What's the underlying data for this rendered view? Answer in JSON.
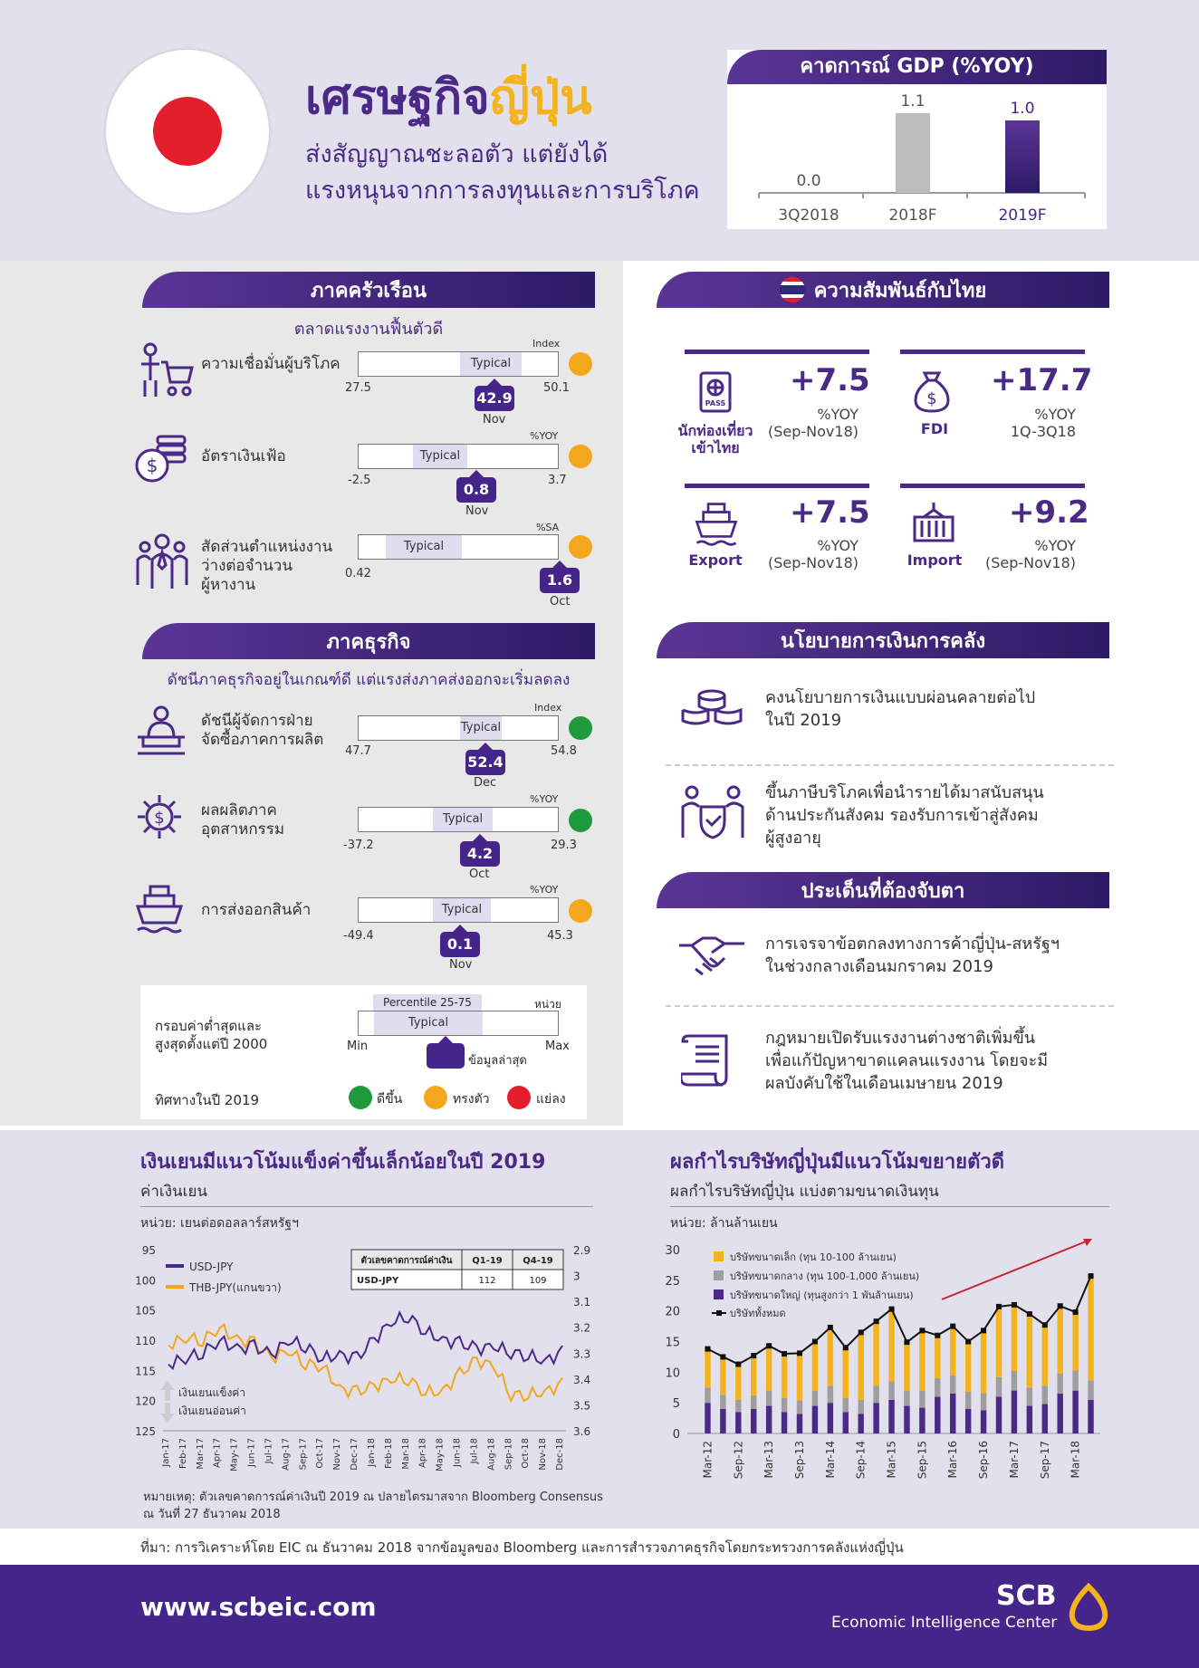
{
  "header": {
    "title_a": "เศรษฐกิจ",
    "title_b": "ญี่ปุ่น",
    "subtitle_1": "ส่งสัญญาณชะลอตัว แต่ยังได้",
    "subtitle_2": "แรงหนุนจากการลงทุนและการบริโภค"
  },
  "gdp": {
    "title": "คาดการณ์ GDP (%YOY)",
    "periods": [
      "3Q2018",
      "2018F",
      "2019F"
    ],
    "values": [
      "0.0",
      "1.1",
      "1.0"
    ]
  },
  "household": {
    "title": "ภาคครัวเรือน",
    "subtitle": "ตลาดแรงงานฟื้นตัวดี",
    "items": [
      {
        "label": "ความเชื่อมั่นผู้บริโภค",
        "unit": "Index",
        "min": "27.5",
        "max": "50.1",
        "typical": "Typical",
        "value": "42.9",
        "period": "Nov",
        "dot": "#f4a71c"
      },
      {
        "label": "อัตราเงินเฟ้อ",
        "unit": "%YOY",
        "min": "-2.5",
        "max": "3.7",
        "typical": "Typical",
        "value": "0.8",
        "period": "Nov",
        "dot": "#f4a71c"
      },
      {
        "label_1": "สัดส่วนตำแหน่งงาน",
        "label_2": "ว่างต่อจำนวน",
        "label_3": "ผู้หางาน",
        "unit": "%SA",
        "min": "0.42",
        "max": "",
        "typical": "Typical",
        "value": "1.6",
        "period": "Oct",
        "dot": "#f4a71c"
      }
    ]
  },
  "business": {
    "title": "ภาคธุรกิจ",
    "subtitle": "ดัชนีภาคธุรกิจอยู่ในเกณฑ์ดี แต่แรงส่งภาคส่งออกจะเริ่มลดลง",
    "items": [
      {
        "label_1": "ดัชนีผู้จัดการฝ่าย",
        "label_2": "จัดซื้อภาคการผลิต",
        "unit": "Index",
        "min": "47.7",
        "max": "54.8",
        "typical": "Typical",
        "value": "52.4",
        "period": "Dec",
        "dot": "#1e9a3c"
      },
      {
        "label_1": "ผลผลิตภาค",
        "label_2": "อุตสาหกรรม",
        "unit": "%YOY",
        "min": "-37.2",
        "max": "29.3",
        "typical": "Typical",
        "value": "4.2",
        "period": "Oct",
        "dot": "#1e9a3c"
      },
      {
        "label_1": "การส่งออกสินค้า",
        "unit": "%YOY",
        "min": "-49.4",
        "max": "45.3",
        "typical": "Typical",
        "value": "0.1",
        "period": "Nov",
        "dot": "#f4a71c"
      }
    ]
  },
  "legend": {
    "range_1": "กรอบค่าต่ำสุดและ",
    "range_2": "สูงสุดตั้งแต่ปี 2000",
    "percentile": "Percentile 25-75",
    "unit": "หน่วย",
    "typical": "Typical",
    "min": "Min",
    "max": "Max",
    "latest": "ข้อมูลล่าสุด",
    "direction": "ทิศทางในปี 2019",
    "up": "ดีขึ้น",
    "flat": "ทรงตัว",
    "down": "แย่ลง"
  },
  "thai": {
    "title": "ความสัมพันธ์กับไทย",
    "items": [
      {
        "value": "+7.5",
        "unit": "%YOY",
        "period": "(Sep-Nov18)",
        "name_1": "นักท่องเที่ยว",
        "name_2": "เข้าไทย",
        "icon": "passport-icon"
      },
      {
        "value": "+17.7",
        "unit": "%YOY",
        "period": "1Q-3Q18",
        "name_1": "FDI",
        "name_2": "",
        "icon": "money-bag-icon"
      },
      {
        "value": "+7.5",
        "unit": "%YOY",
        "period": "(Sep-Nov18)",
        "name_1": "Export",
        "name_2": "",
        "icon": "ship-icon"
      },
      {
        "value": "+9.2",
        "unit": "%YOY",
        "period": "(Sep-Nov18)",
        "name_1": "Import",
        "name_2": "",
        "icon": "container-icon"
      }
    ]
  },
  "fiscal": {
    "title": "นโยบายการเงินการคลัง",
    "items": [
      {
        "l1": "คงนโยบายการเงินแบบผ่อนคลายต่อไป",
        "l2": "ในปี 2019",
        "l3": ""
      },
      {
        "l1": "ขึ้นภาษีบริโภคเพื่อนำรายได้มาสนับสนุน",
        "l2": "ด้านประกันสังคม รองรับการเข้าสู่สังคม",
        "l3": "ผู้สูงอายุ"
      }
    ]
  },
  "watch": {
    "title": "ประเด็นที่ต้องจับตา",
    "items": [
      {
        "l1": "การเจรจาข้อตกลงทางการค้าญี่ปุ่น-สหรัฐฯ",
        "l2": "ในช่วงกลางเดือนมกราคม 2019",
        "l3": ""
      },
      {
        "l1": "กฎหมายเปิดรับแรงงานต่างชาติเพิ่มขึ้น",
        "l2": "เพื่อแก้ปัญหาขาดแคลนแรงงาน โดยจะมี",
        "l3": "ผลบังคับใช้ในเดือนเมษายน 2019"
      }
    ]
  },
  "yen": {
    "title": "เงินเยนมีแนวโน้มแข็งค่าขึ้นเล็กน้อยในปี 2019",
    "subtitle": "ค่าเงินเยน",
    "unit": "หน่วย: เยนต่อดอลลาร์สหรัฐฯ",
    "legend_usd": "USD-JPY",
    "legend_thb": "THB-JPY(แกนขวา)",
    "strong": "เงินเยนแข็งค่า",
    "weak": "เงินเยนอ่อนค่า",
    "forecast_header": [
      "ตัวเลขคาดการณ์ค่าเงิน",
      "Q1-19",
      "Q4-19"
    ],
    "forecast_row": [
      "USD-JPY",
      "112",
      "109"
    ],
    "note_1": "หมายเหตุ: ตัวเลขคาดการณ์ค่าเงินปี 2019 ณ ปลายไตรมาสจาก Bloomberg Consensus",
    "note_2": "ณ วันที่ 27 ธันวาคม 2018"
  },
  "profit": {
    "title": "ผลกำไรบริษัทญี่ปุ่นมีแนวโน้มขยายตัวดี",
    "subtitle": "ผลกำไรบริษัทญี่ปุ่น แบ่งตามขนาดเงินทุน",
    "unit": "หน่วย: ล้านล้านเยน",
    "legend": [
      "บริษัทขนาดเล็ก (ทุน 10-100 ล้านเยน)",
      "บริษัทขนาดกลาง (ทุน 100-1,000 ล้านเยน)",
      "บริษัทขนาดใหญ่ (ทุนสูงกว่า 1 พันล้านเยน)",
      "บริษัททั้งหมด"
    ]
  },
  "source": "ที่มา: การวิเคราะห์โดย EIC ณ ธันวาคม 2018 จากข้อมูลของ Bloomberg และการสำรวจภาคธุรกิจโดยกระทรวงการคลังแห่งญี่ปุ่น",
  "footer": {
    "url": "www.scbeic.com",
    "brand": "SCB",
    "brand_sub": "Economic Intelligence Center"
  },
  "chart_data": [
    {
      "type": "bar",
      "title": "คาดการณ์ GDP (%YOY)",
      "categories": [
        "3Q2018",
        "2018F",
        "2019F"
      ],
      "values": [
        0.0,
        1.1,
        1.0
      ]
    },
    {
      "type": "line",
      "title": "เงินเยนมีแนวโน้มแข็งค่าขึ้นเล็กน้อยในปี 2019",
      "ylabel": "หน่วย: เยนต่อดอลลาร์สหรัฐฯ",
      "x": [
        "Jan-17",
        "Feb-17",
        "Mar-17",
        "Apr-17",
        "May-17",
        "Jun-17",
        "Jul-17",
        "Aug-17",
        "Sep-17",
        "Oct-17",
        "Nov-17",
        "Dec-17",
        "Jan-18",
        "Feb-18",
        "Mar-18",
        "Apr-18",
        "May-18",
        "Jun-18",
        "Jul-18",
        "Aug-18",
        "Sep-18",
        "Oct-18",
        "Nov-18",
        "Dec-18"
      ],
      "y_left_ticks": [
        95,
        100,
        105,
        110,
        115,
        120,
        125
      ],
      "y_right_ticks": [
        2.9,
        3,
        3.1,
        3.2,
        3.3,
        3.4,
        3.5,
        3.6
      ],
      "series": [
        {
          "name": "USD-JPY",
          "axis": "left",
          "values": [
            114,
            113,
            112,
            110,
            111.5,
            111,
            112.5,
            110,
            111,
            113,
            112.5,
            113,
            110,
            107,
            106,
            108.5,
            110,
            110.5,
            111.5,
            111,
            112,
            112.5,
            113.5,
            112
          ]
        },
        {
          "name": "THB-JPY(แกนขวา)",
          "axis": "right",
          "values": [
            3.27,
            3.24,
            3.25,
            3.2,
            3.25,
            3.26,
            3.32,
            3.29,
            3.34,
            3.35,
            3.44,
            3.45,
            3.43,
            3.4,
            3.4,
            3.45,
            3.45,
            3.38,
            3.33,
            3.35,
            3.46,
            3.46,
            3.45,
            3.42
          ]
        }
      ]
    },
    {
      "type": "bar",
      "title": "ผลกำไรบริษัทญี่ปุ่นมีแนวโน้มขยายตัวดี",
      "ylabel": "หน่วย: ล้านล้านเยน",
      "ylim": [
        0,
        30
      ],
      "x": [
        "Mar-12",
        "Jun-12",
        "Sep-12",
        "Dec-12",
        "Mar-13",
        "Jun-13",
        "Sep-13",
        "Dec-13",
        "Mar-14",
        "Jun-14",
        "Sep-14",
        "Dec-14",
        "Mar-15",
        "Jun-15",
        "Sep-15",
        "Dec-15",
        "Mar-16",
        "Jun-16",
        "Sep-16",
        "Dec-16",
        "Mar-17",
        "Jun-17",
        "Sep-17",
        "Dec-17",
        "Mar-18",
        "Jun-18"
      ],
      "x_tick_labels": [
        "Mar-12",
        "Sep-12",
        "Mar-13",
        "Sep-13",
        "Mar-14",
        "Sep-14",
        "Mar-15",
        "Sep-15",
        "Mar-16",
        "Sep-16",
        "Mar-17",
        "Sep-17",
        "Mar-18"
      ],
      "series": [
        {
          "name": "บริษัทขนาดใหญ่ (ทุนสูงกว่า 1 พันล้านเยน)",
          "values": [
            5,
            4,
            3.5,
            4,
            4.5,
            3.5,
            3.2,
            4.5,
            5,
            3.5,
            3.2,
            5,
            5.5,
            4.5,
            4.2,
            6,
            6.5,
            4,
            3.8,
            6,
            7,
            4.5,
            4.8,
            6.5,
            7,
            5.5
          ]
        },
        {
          "name": "บริษัทขนาดกลาง (ทุน 100-1,000 ล้านเยน)",
          "values": [
            2.5,
            2.3,
            2,
            2.2,
            2.5,
            2.3,
            2.2,
            2.5,
            2.8,
            2.3,
            2.3,
            2.8,
            3,
            2.5,
            2.8,
            3,
            3,
            2.8,
            2.8,
            3.2,
            3.2,
            3,
            3,
            3.3,
            3.3,
            3.2
          ]
        },
        {
          "name": "บริษัทขนาดเล็ก (ทุน 10-100 ล้านเยน)",
          "values": [
            6.3,
            6.2,
            5.8,
            6.5,
            7.3,
            7.2,
            7.7,
            8,
            9.5,
            8.2,
            11,
            10.5,
            11.8,
            7.9,
            9.8,
            7,
            8,
            8.2,
            10.2,
            11.5,
            10.8,
            12,
            9.9,
            11,
            9.5,
            17
          ]
        },
        {
          "name": "บริษัททั้งหมด",
          "type": "line",
          "values": [
            13.8,
            12.5,
            11.3,
            12.7,
            14.3,
            13,
            13.1,
            15,
            17.3,
            14,
            16.5,
            18.3,
            20.3,
            14.9,
            16.8,
            16,
            17.5,
            15,
            16.8,
            20.7,
            21,
            19.5,
            17.7,
            20.8,
            19.8,
            25.7
          ]
        }
      ]
    }
  ]
}
